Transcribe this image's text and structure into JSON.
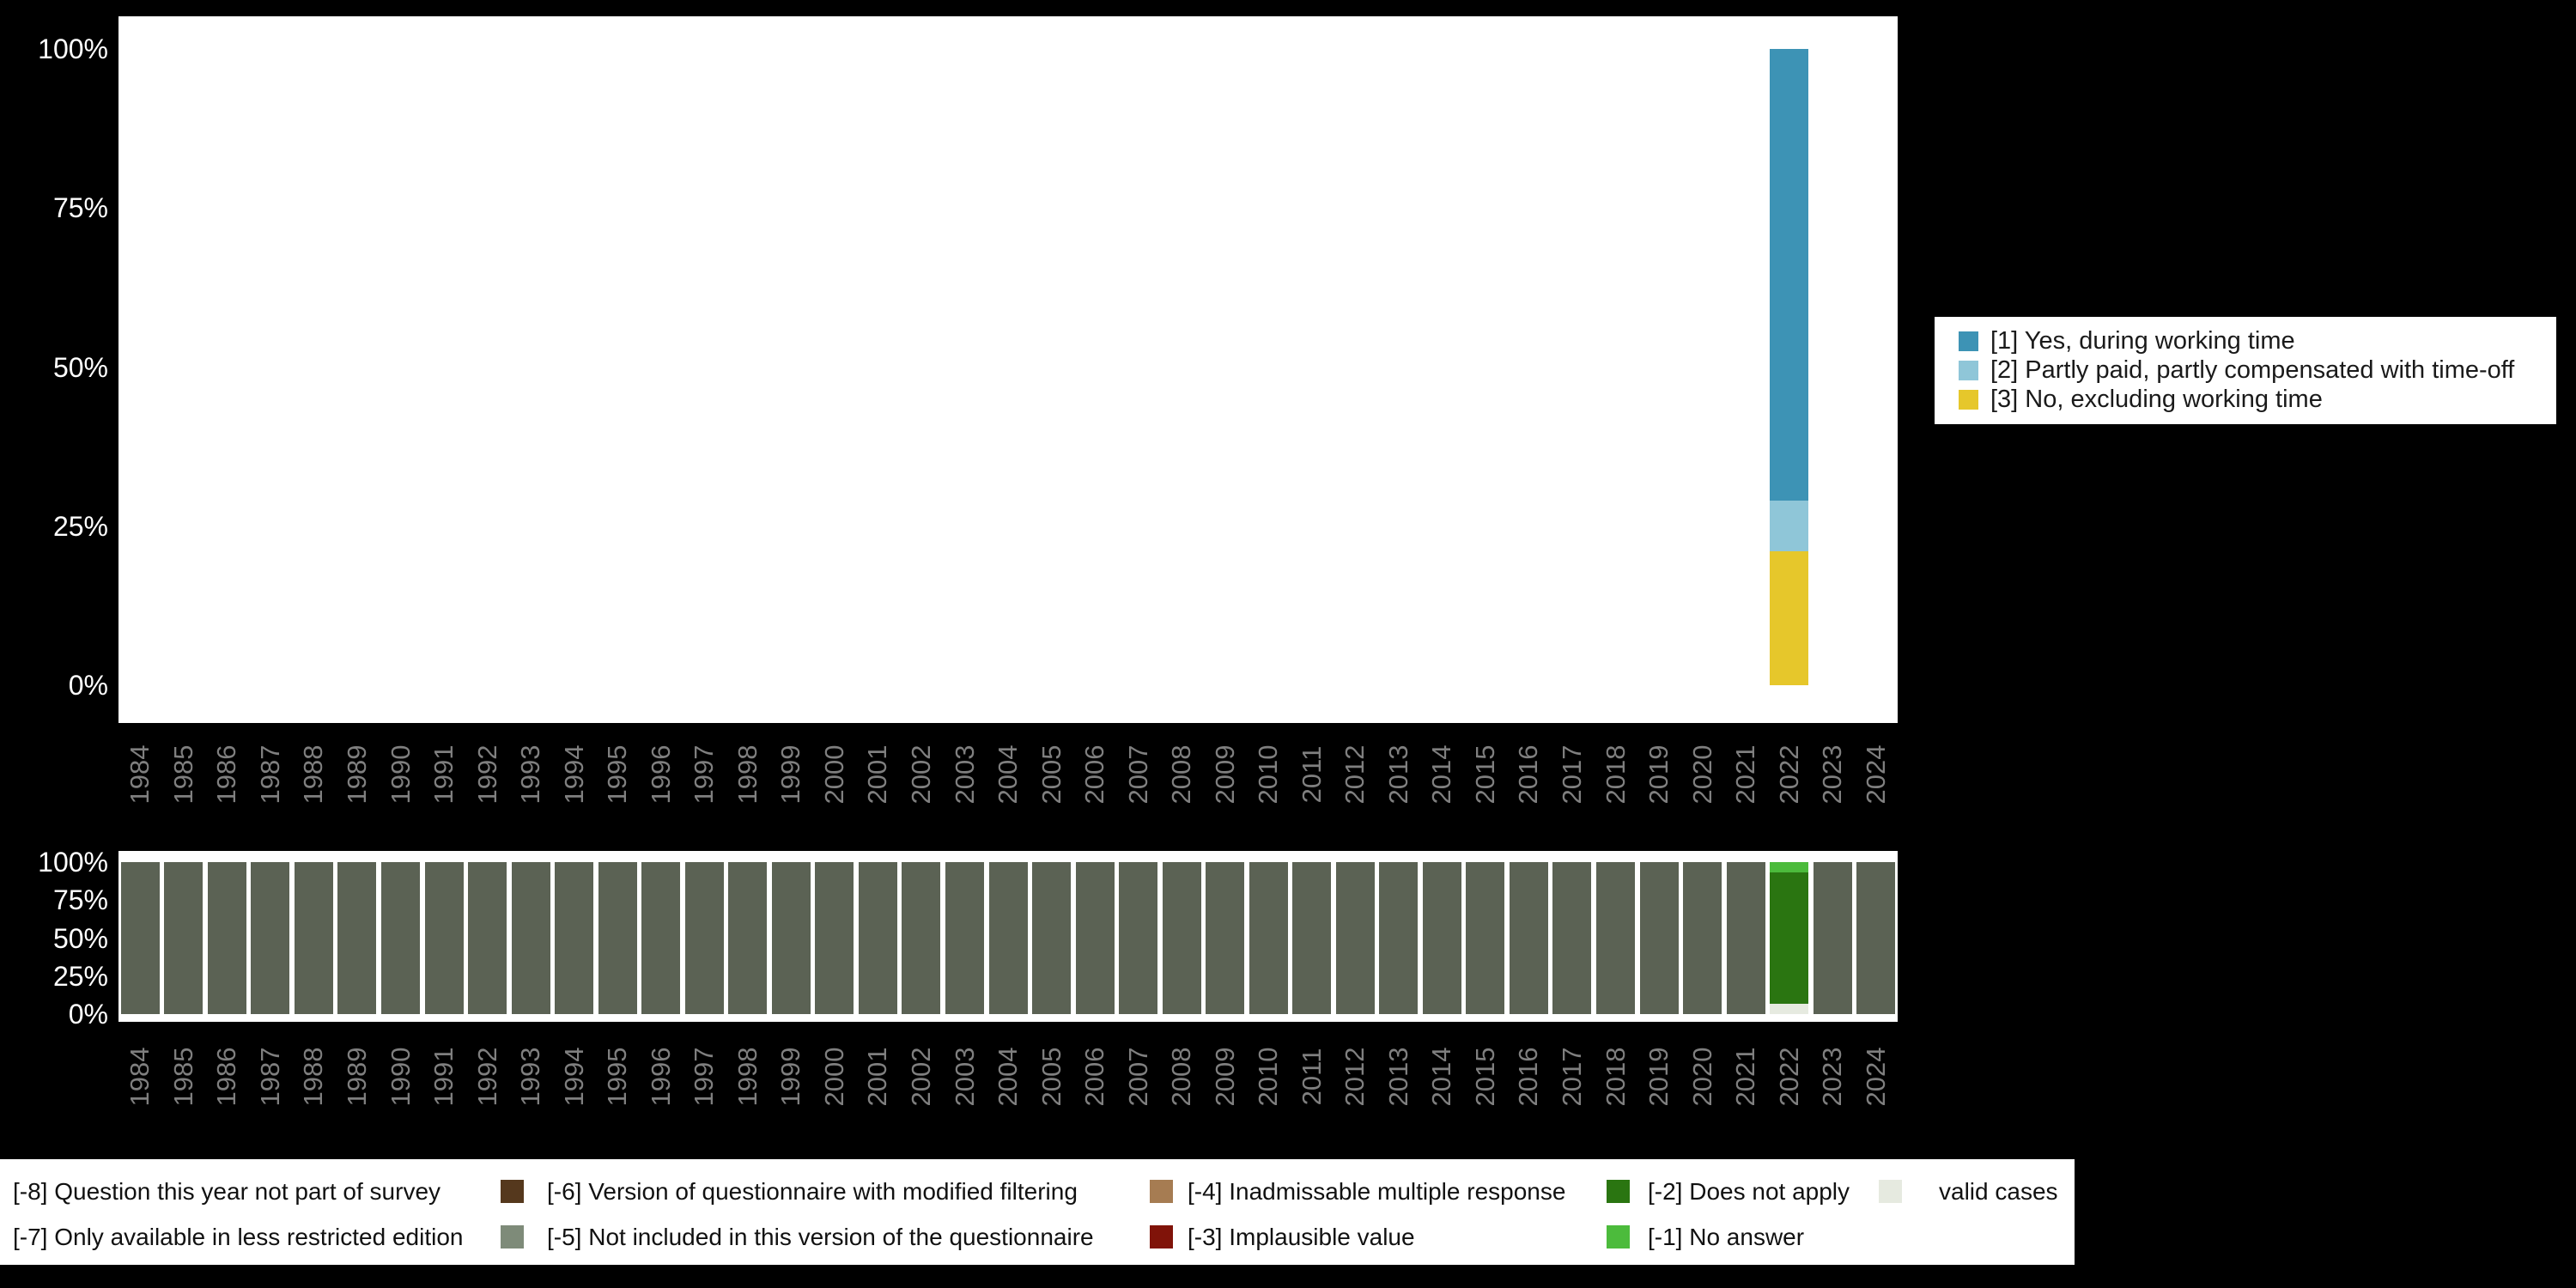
{
  "page": {
    "background": "#000000",
    "panel_background": "#ffffff",
    "axis_tick_text_color": "#ffffff",
    "year_label_color": "#7f7f7f"
  },
  "chart_data": [
    {
      "type": "bar",
      "role": "percentage-distribution-of-valid-answers",
      "stacked": true,
      "unit": "percent",
      "grid": false,
      "legend_position": "right",
      "ylim": [
        0,
        100
      ],
      "yticks": [
        "0%",
        "25%",
        "50%",
        "75%",
        "100%"
      ],
      "x_years": [
        1984,
        1985,
        1986,
        1987,
        1988,
        1989,
        1990,
        1991,
        1992,
        1993,
        1994,
        1995,
        1996,
        1997,
        1998,
        1999,
        2000,
        2001,
        2002,
        2003,
        2004,
        2005,
        2006,
        2007,
        2008,
        2009,
        2010,
        2011,
        2012,
        2013,
        2014,
        2015,
        2016,
        2017,
        2018,
        2019,
        2020,
        2021,
        2022,
        2023,
        2024
      ],
      "series": [
        {
          "name": "[1] Yes, during working time",
          "color": "#3D93B5",
          "default": 0,
          "values_by_year": {
            "2022": 71
          }
        },
        {
          "name": "[2] Partly paid, partly compensated with time-off",
          "color": "#8FC6D8",
          "default": 0,
          "values_by_year": {
            "2022": 8
          }
        },
        {
          "name": "[3] No, excluding working time",
          "color": "#E6C72B",
          "default": 0,
          "values_by_year": {
            "2022": 21
          }
        }
      ]
    },
    {
      "type": "bar",
      "role": "missing-values-distribution",
      "stacked": true,
      "unit": "percent",
      "grid": false,
      "legend_position": "bottom",
      "ylim": [
        0,
        100
      ],
      "yticks": [
        "0%",
        "25%",
        "50%",
        "75%",
        "100%"
      ],
      "x_years": [
        1984,
        1985,
        1986,
        1987,
        1988,
        1989,
        1990,
        1991,
        1992,
        1993,
        1994,
        1995,
        1996,
        1997,
        1998,
        1999,
        2000,
        2001,
        2002,
        2003,
        2004,
        2005,
        2006,
        2007,
        2008,
        2009,
        2010,
        2011,
        2012,
        2013,
        2014,
        2015,
        2016,
        2017,
        2018,
        2019,
        2020,
        2021,
        2022,
        2023,
        2024
      ],
      "series": [
        {
          "name": "[-8] Question this year not part of survey",
          "color": "#5B6254",
          "default": 100,
          "values_by_year": {
            "2022": 0
          }
        },
        {
          "name": "valid cases",
          "color": "#E6EAE0",
          "default": 0,
          "values_by_year": {
            "2022": 7
          }
        },
        {
          "name": "[-2] Does not apply",
          "color": "#2A7511",
          "default": 0,
          "values_by_year": {
            "2022": 86
          }
        },
        {
          "name": "[-1] No answer",
          "color": "#4CBB3C",
          "default": 0,
          "values_by_year": {
            "2022": 7
          }
        }
      ]
    }
  ],
  "bottom_legend": {
    "rows": [
      [
        {
          "label": "[-8] Question this year not part of survey",
          "swatch": null
        },
        {
          "label": "[-6] Version of questionnaire with modified filtering",
          "swatch": "#55381D"
        },
        {
          "label": "[-4] Inadmissable multiple response",
          "swatch": "#A67C52"
        },
        {
          "label": "[-2] Does not apply",
          "swatch": "#2A7511"
        },
        {
          "label": "valid cases",
          "swatch": "#E6EAE0"
        }
      ],
      [
        {
          "label": "[-7] Only available in less restricted edition",
          "swatch": null
        },
        {
          "label": "[-5] Not included in this version of the questionnaire",
          "swatch": "#7E8B79"
        },
        {
          "label": "[-3] Implausible value",
          "swatch": "#801309"
        },
        {
          "label": "[-1] No answer",
          "swatch": "#4CBB3C"
        }
      ]
    ]
  }
}
